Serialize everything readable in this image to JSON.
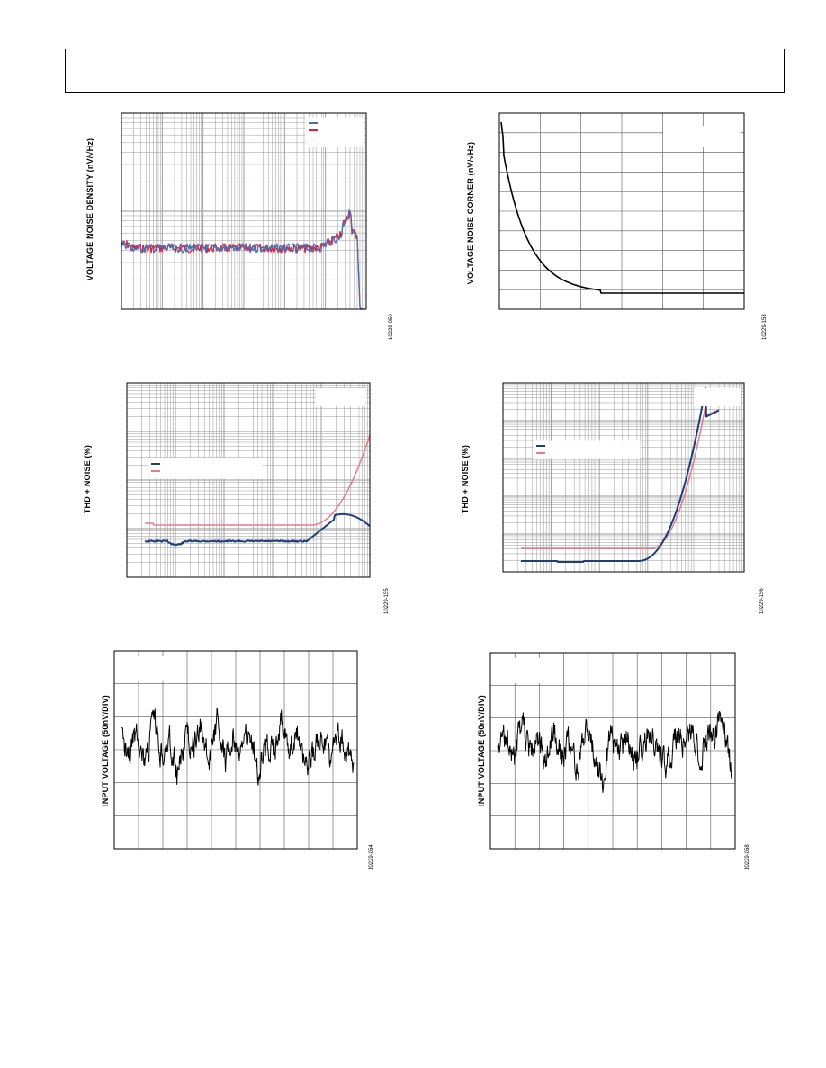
{
  "page": {
    "header_box": ""
  },
  "charts": [
    {
      "id": "chart1",
      "ylabel": "VOLTAGE NOISE DENSITY (nV/√Hz)",
      "fignum": "10229-050",
      "xscale": "log",
      "yscale": "log",
      "colors": [
        "#4a6fb0",
        "#e01e3c"
      ],
      "legend_position": "top-right"
    },
    {
      "id": "chart2",
      "ylabel": "VOLTAGE NOISE CORNER (nV/√Hz)",
      "fignum": "10229-153",
      "xscale": "linear",
      "yscale": "linear",
      "colors": [
        "#000000"
      ],
      "legend_position": "top-right"
    },
    {
      "id": "chart3",
      "ylabel": "THD + NOISE (%)",
      "fignum": "10229-155",
      "xscale": "log",
      "yscale": "log",
      "colors": [
        "#1f3f7a",
        "#e87a90"
      ],
      "legend_position": "left"
    },
    {
      "id": "chart4",
      "ylabel": "THD + NOISE (%)",
      "fignum": "10229-156",
      "xscale": "log",
      "yscale": "log",
      "colors": [
        "#1f3f7a",
        "#e87a90"
      ],
      "legend_position": "top-left"
    },
    {
      "id": "chart5",
      "ylabel": "INPUT VOLTAGE (50nV/DIV)",
      "fignum": "10229-054",
      "xscale": "linear",
      "yscale": "linear",
      "colors": [
        "#000000"
      ]
    },
    {
      "id": "chart6",
      "ylabel": "INPUT VOLTAGE (50nV/DIV)",
      "fignum": "10229-058",
      "xscale": "linear",
      "yscale": "linear",
      "colors": [
        "#000000"
      ]
    }
  ],
  "chart_data": [
    {
      "type": "line",
      "title": "",
      "xlabel": "",
      "ylabel": "VOLTAGE NOISE DENSITY (nV/√Hz)",
      "xscale": "log",
      "yscale": "log",
      "grid": true,
      "x": [
        1,
        10,
        100,
        1000,
        10000,
        100000,
        300000,
        500000,
        1000000
      ],
      "series": [
        {
          "values": [
            0.62,
            0.6,
            0.6,
            0.6,
            0.6,
            0.62,
            0.7,
            0.72,
            0.01
          ]
        },
        {
          "values": [
            0.62,
            0.6,
            0.6,
            0.6,
            0.6,
            0.63,
            0.75,
            0.82,
            0.01
          ]
        }
      ]
    },
    {
      "type": "line",
      "title": "",
      "xlabel": "",
      "ylabel": "VOLTAGE NOISE CORNER (nV/√Hz)",
      "grid": true,
      "x": [
        0.0,
        0.1,
        0.25,
        0.5,
        0.8,
        1.2,
        1.6,
        2.0,
        6.0
      ],
      "series": [
        {
          "values": [
            9.0,
            6.8,
            5.2,
            4.0,
            2.9,
            1.8,
            1.2,
            0.9,
            0.9
          ]
        }
      ]
    },
    {
      "type": "line",
      "title": "",
      "xlabel": "",
      "ylabel": "THD + NOISE (%)",
      "xscale": "log",
      "yscale": "log",
      "grid": true,
      "x": [
        10,
        20,
        50,
        100,
        1000,
        5000,
        10000,
        20000,
        40000,
        80000
      ],
      "series": [
        {
          "values": [
            0.0004,
            0.0003,
            0.0004,
            0.0004,
            0.0004,
            0.0004,
            0.0006,
            0.0015,
            0.002,
            0.0015
          ]
        },
        {
          "values": [
            0.0008,
            0.0007,
            0.0007,
            0.0007,
            0.0007,
            0.0008,
            0.001,
            0.003,
            0.008,
            0.03
          ]
        }
      ]
    },
    {
      "type": "line",
      "title": "",
      "xlabel": "",
      "ylabel": "THD + NOISE (%)",
      "xscale": "log",
      "yscale": "log",
      "grid": true,
      "x": [
        0.001,
        0.003,
        0.01,
        0.03,
        0.1,
        0.2,
        0.4,
        0.6,
        0.8,
        1.0
      ],
      "series": [
        {
          "values": [
            0.00015,
            0.00014,
            0.00014,
            0.00015,
            0.0002,
            0.0006,
            0.005,
            0.05,
            0.2,
            0.3
          ]
        },
        {
          "values": [
            0.00025,
            0.00025,
            0.00025,
            0.00025,
            0.00028,
            0.0008,
            0.006,
            0.06,
            0.22,
            0.32
          ]
        }
      ]
    },
    {
      "type": "line",
      "title": "",
      "xlabel": "",
      "ylabel": "INPUT VOLTAGE (50nV/DIV)",
      "grid": true,
      "x_divisions": 10,
      "y_divisions": 6,
      "series": [
        {
          "values": [
            0.4,
            0.55,
            0.3,
            0.75,
            0.2,
            0.6,
            0.45,
            0.85,
            0.35,
            0.5,
            0.25,
            0.7,
            0.15,
            0.65,
            0.4,
            0.55,
            0.3,
            0.8,
            0.45,
            0.6,
            0.2,
            0.5,
            0.35,
            0.7,
            0.55,
            0.4,
            0.65,
            0.3,
            0.5,
            0.75
          ]
        }
      ]
    },
    {
      "type": "line",
      "title": "",
      "xlabel": "",
      "ylabel": "INPUT VOLTAGE (50nV/DIV)",
      "grid": true,
      "x_divisions": 10,
      "y_divisions": 6,
      "series": [
        {
          "values": [
            0.5,
            0.35,
            0.65,
            0.2,
            0.55,
            0.4,
            0.7,
            0.3,
            0.6,
            0.45,
            0.75,
            0.25,
            0.55,
            0.9,
            0.4,
            0.6,
            0.35,
            0.65,
            0.45,
            0.3,
            0.55,
            0.7,
            0.4,
            0.5,
            0.25,
            0.6,
            0.45,
            0.35,
            0.15,
            0.8
          ]
        }
      ]
    }
  ]
}
